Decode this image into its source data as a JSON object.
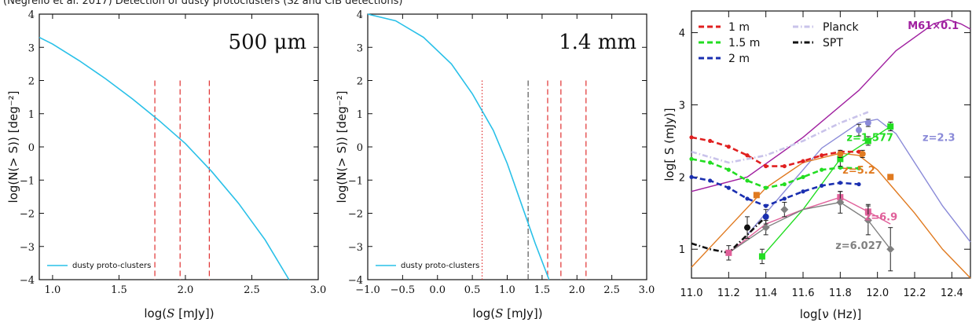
{
  "caption": "(Negrello et al. 2017) Detection of dusty protoclusters (Sz and CIB detections)",
  "chart_data": [
    {
      "type": "line",
      "panel_label": "500 μm",
      "xlabel_pre": "log(",
      "xlabel_var": "S",
      "xlabel_post": " [mJy])",
      "ylabel": "log(N(> S)) [deg⁻²]",
      "xlim": [
        0.9,
        3.0
      ],
      "ylim": [
        -4,
        4
      ],
      "xticks": [
        "1.0",
        "1.5",
        "2.0",
        "2.5",
        "3.0"
      ],
      "yticks": [
        "4",
        "3",
        "2",
        "1",
        "0",
        "−1",
        "−2",
        "−3",
        "−4"
      ],
      "legend": "dusty proto-clusters",
      "curve_color": "#29c0e8",
      "series": [
        {
          "name": "dusty proto-clusters",
          "x": [
            0.9,
            1.0,
            1.2,
            1.4,
            1.6,
            1.8,
            2.0,
            2.2,
            2.4,
            2.6,
            2.78
          ],
          "y": [
            3.3,
            3.1,
            2.6,
            2.05,
            1.45,
            0.8,
            0.1,
            -0.75,
            -1.7,
            -2.8,
            -4.0
          ]
        }
      ],
      "vlines": [
        {
          "x": 1.77,
          "style": "dashed",
          "color": "#e03030"
        },
        {
          "x": 1.96,
          "style": "dashed",
          "color": "#e03030"
        },
        {
          "x": 2.18,
          "style": "dashed",
          "color": "#e03030"
        }
      ]
    },
    {
      "type": "line",
      "panel_label": "1.4 mm",
      "xlabel_pre": "log(",
      "xlabel_var": "S",
      "xlabel_post": " [mJy])",
      "ylabel": "log(N(> S)) [deg⁻²]",
      "xlim": [
        -1.0,
        3.0
      ],
      "ylim": [
        -4,
        4
      ],
      "xticks": [
        "−1.0",
        "−0.5",
        "0.0",
        "0.5",
        "1.0",
        "1.5",
        "2.0",
        "2.5",
        "3.0"
      ],
      "yticks": [
        "4",
        "3",
        "2",
        "1",
        "0",
        "−1",
        "−2",
        "−3",
        "−4"
      ],
      "legend": "dusty proto-clusters",
      "curve_color": "#29c0e8",
      "series": [
        {
          "name": "dusty proto-clusters",
          "x": [
            -1.0,
            -0.6,
            -0.2,
            0.2,
            0.5,
            0.8,
            1.0,
            1.2,
            1.4,
            1.6
          ],
          "y": [
            4.0,
            3.8,
            3.3,
            2.5,
            1.6,
            0.5,
            -0.5,
            -1.7,
            -2.9,
            -4.0
          ]
        }
      ],
      "vlines": [
        {
          "x": 0.64,
          "style": "dotted",
          "color": "#e03030"
        },
        {
          "x": 1.3,
          "style": "dashdot",
          "color": "#555555"
        },
        {
          "x": 1.58,
          "style": "dashed",
          "color": "#e03030"
        },
        {
          "x": 1.77,
          "style": "dashed",
          "color": "#e03030"
        },
        {
          "x": 2.13,
          "style": "dashed",
          "color": "#e03030"
        }
      ]
    },
    {
      "type": "line",
      "xlabel_pre": "log[",
      "xlabel_var": "ν",
      "xlabel_post": " (Hz)]",
      "ylabel": "log[ S (mJy)]",
      "xlim": [
        11.0,
        12.5
      ],
      "ylim": [
        0.6,
        4.3
      ],
      "xticks": [
        "11.0",
        "11.2",
        "11.4",
        "11.6",
        "11.8",
        "12.0",
        "12.2",
        "12.4"
      ],
      "yticks": [
        "4",
        "3",
        "2",
        "1"
      ],
      "legend": [
        {
          "label": "1 m",
          "color": "#e02020",
          "style": "dashed"
        },
        {
          "label": "1.5 m",
          "color": "#22dd22",
          "style": "dashed"
        },
        {
          "label": "2 m",
          "color": "#1a2fb0",
          "style": "dashed"
        },
        {
          "label": "Planck",
          "color": "#c9c3ea",
          "style": "dashdot"
        },
        {
          "label": "SPT",
          "color": "#111111",
          "style": "dashdot"
        }
      ],
      "annotations": [
        {
          "text": "M61×0.1",
          "color": "#a020a0",
          "x": 12.3,
          "y": 4.05
        },
        {
          "text": "z=1.577",
          "color": "#22dd22",
          "x": 11.96,
          "y": 2.5
        },
        {
          "text": "z=2.3",
          "color": "#8a8ad8",
          "x": 12.33,
          "y": 2.5
        },
        {
          "text": "z=5.2",
          "color": "#e07a20",
          "x": 11.9,
          "y": 2.05
        },
        {
          "text": "z=6.9",
          "color": "#e0609a",
          "x": 12.02,
          "y": 1.4
        },
        {
          "text": "z=6.027",
          "color": "#808080",
          "x": 11.9,
          "y": 1.0
        }
      ],
      "series": [
        {
          "name": "M61×0.1",
          "color": "#a020a0",
          "style": "solid",
          "x": [
            11.0,
            11.3,
            11.6,
            11.9,
            12.1,
            12.3,
            12.38,
            12.45,
            12.5
          ],
          "y": [
            1.8,
            2.0,
            2.55,
            3.2,
            3.75,
            4.12,
            4.18,
            4.12,
            4.05
          ]
        },
        {
          "name": "z=2.3",
          "color": "#8a8ad8",
          "style": "solid",
          "x": [
            11.3,
            11.5,
            11.7,
            11.9,
            12.0,
            12.1,
            12.2,
            12.35,
            12.5
          ],
          "y": [
            1.2,
            1.8,
            2.4,
            2.75,
            2.8,
            2.6,
            2.2,
            1.6,
            1.1
          ]
        },
        {
          "name": "z=5.2",
          "color": "#e07a20",
          "style": "solid",
          "x": [
            11.0,
            11.2,
            11.4,
            11.6,
            11.8,
            11.9,
            12.0,
            12.2,
            12.35,
            12.5
          ],
          "y": [
            0.75,
            1.3,
            1.85,
            2.2,
            2.33,
            2.3,
            2.1,
            1.5,
            1.0,
            0.6
          ]
        },
        {
          "name": "z=1.577",
          "color": "#22dd22",
          "style": "solid",
          "x": [
            11.38,
            11.6,
            11.8,
            11.95,
            12.07
          ],
          "y": [
            0.9,
            1.55,
            2.25,
            2.5,
            2.7
          ]
        },
        {
          "name": "z=6.9",
          "color": "#e0609a",
          "style": "solid",
          "x": [
            11.2,
            11.4,
            11.6,
            11.8,
            11.95,
            12.07
          ],
          "y": [
            0.95,
            1.35,
            1.55,
            1.72,
            1.52,
            1.35
          ]
        },
        {
          "name": "z=6.027",
          "color": "#808080",
          "style": "solid",
          "x": [
            11.2,
            11.4,
            11.6,
            11.8,
            11.95,
            12.07
          ],
          "y": [
            0.95,
            1.3,
            1.55,
            1.65,
            1.4,
            1.0
          ]
        },
        {
          "name": "1 m",
          "color": "#e02020",
          "style": "dashed",
          "x": [
            11.0,
            11.1,
            11.2,
            11.3,
            11.4,
            11.5,
            11.6,
            11.7,
            11.8,
            11.9
          ],
          "y": [
            2.55,
            2.5,
            2.42,
            2.3,
            2.15,
            2.15,
            2.22,
            2.3,
            2.35,
            2.35
          ]
        },
        {
          "name": "1.5 m",
          "color": "#22dd22",
          "style": "dashed",
          "x": [
            11.0,
            11.1,
            11.2,
            11.3,
            11.4,
            11.5,
            11.6,
            11.7,
            11.8,
            11.9
          ],
          "y": [
            2.25,
            2.2,
            2.1,
            1.95,
            1.85,
            1.9,
            2.0,
            2.1,
            2.13,
            2.12
          ]
        },
        {
          "name": "2 m",
          "color": "#1a2fb0",
          "style": "dashed",
          "x": [
            11.0,
            11.1,
            11.2,
            11.3,
            11.4,
            11.5,
            11.6,
            11.7,
            11.8,
            11.9
          ],
          "y": [
            2.0,
            1.95,
            1.85,
            1.7,
            1.6,
            1.7,
            1.8,
            1.88,
            1.92,
            1.9
          ]
        },
        {
          "name": "Planck",
          "color": "#c9c3ea",
          "style": "dashdot",
          "x": [
            11.0,
            11.2,
            11.4,
            11.6,
            11.8,
            11.95
          ],
          "y": [
            2.35,
            2.2,
            2.3,
            2.5,
            2.75,
            2.9
          ]
        },
        {
          "name": "SPT",
          "color": "#111111",
          "style": "dashdot",
          "x": [
            11.0,
            11.1,
            11.2,
            11.3,
            11.4
          ],
          "y": [
            1.08,
            1.0,
            0.95,
            1.2,
            1.45
          ]
        }
      ],
      "points": [
        {
          "x": 12.07,
          "y": 2.7,
          "color": "#22dd22",
          "err": 0.06,
          "marker": "square"
        },
        {
          "x": 11.95,
          "y": 2.5,
          "color": "#22dd22",
          "err": 0.06,
          "marker": "square"
        },
        {
          "x": 11.8,
          "y": 2.25,
          "color": "#22dd22",
          "err": 0.1,
          "marker": "square"
        },
        {
          "x": 11.38,
          "y": 0.9,
          "color": "#22dd22",
          "err": 0.1,
          "marker": "square"
        },
        {
          "x": 11.9,
          "y": 2.65,
          "color": "#8a8ad8",
          "err": 0.08,
          "marker": "circle"
        },
        {
          "x": 11.95,
          "y": 2.75,
          "color": "#8a8ad8",
          "err": 0.05,
          "marker": "circle"
        },
        {
          "x": 11.8,
          "y": 2.32,
          "color": "#e07a20",
          "err": 0.05,
          "marker": "circle"
        },
        {
          "x": 11.92,
          "y": 2.32,
          "color": "#e07a20",
          "err": 0.05,
          "marker": "circle"
        },
        {
          "x": 12.07,
          "y": 2.0,
          "color": "#e07a20",
          "err": 0.0,
          "marker": "square"
        },
        {
          "x": 11.35,
          "y": 1.75,
          "color": "#e07a20",
          "err": 0.0,
          "marker": "square"
        },
        {
          "x": 11.8,
          "y": 1.72,
          "color": "#e0609a",
          "err": 0.08,
          "marker": "square"
        },
        {
          "x": 11.95,
          "y": 1.52,
          "color": "#e0609a",
          "err": 0.1,
          "marker": "square"
        },
        {
          "x": 11.2,
          "y": 0.95,
          "color": "#e0609a",
          "err": 0.1,
          "marker": "square"
        },
        {
          "x": 11.8,
          "y": 1.65,
          "color": "#808080",
          "err": 0.15,
          "marker": "diamond"
        },
        {
          "x": 11.95,
          "y": 1.4,
          "color": "#808080",
          "err": 0.2,
          "marker": "diamond"
        },
        {
          "x": 12.07,
          "y": 1.0,
          "color": "#808080",
          "err": 0.3,
          "marker": "diamond"
        },
        {
          "x": 11.4,
          "y": 1.3,
          "color": "#808080",
          "err": 0.1,
          "marker": "diamond"
        },
        {
          "x": 11.5,
          "y": 1.55,
          "color": "#808080",
          "err": 0.1,
          "marker": "diamond"
        },
        {
          "x": 11.3,
          "y": 1.3,
          "color": "#111111",
          "err": 0.15,
          "marker": "circle"
        },
        {
          "x": 11.4,
          "y": 1.45,
          "color": "#1a2fb0",
          "err": 0.1,
          "marker": "circle"
        }
      ]
    }
  ]
}
